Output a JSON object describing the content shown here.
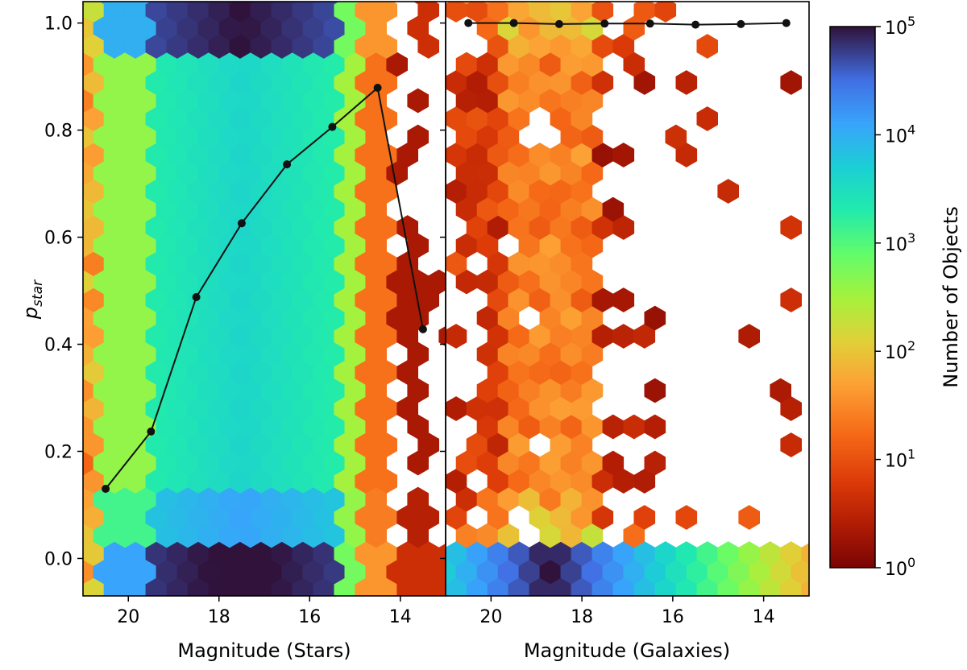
{
  "chart_data": [
    {
      "type": "heatmap",
      "panel": "stars",
      "xlabel": "Magnitude (Stars)",
      "ylabel_base": "p",
      "ylabel_sub": "star",
      "xlim": [
        21.0,
        13.0
      ],
      "ylim": [
        -0.07,
        1.04
      ],
      "x_ticks": [
        20,
        18,
        16,
        14
      ],
      "y_ticks": [
        0.0,
        0.2,
        0.4,
        0.6,
        0.8,
        1.0
      ],
      "density_description": "Dense hexbin: ~1e3-1e4 objects per bin for magnitudes 20.5-15, peaks (~1e5) at p_star=0 and p_star=1, sparse dark-red bins brighter than mag 15",
      "series": [
        {
          "values": [
            [
              20.5,
              0.13
            ],
            [
              19.5,
              0.237
            ],
            [
              18.5,
              0.488
            ],
            [
              17.5,
              0.626
            ],
            [
              16.5,
              0.736
            ],
            [
              15.5,
              0.806
            ],
            [
              14.5,
              0.879
            ],
            [
              13.5,
              0.428
            ]
          ]
        }
      ]
    },
    {
      "type": "heatmap",
      "panel": "galaxies",
      "xlabel": "Magnitude (Galaxies)",
      "xlim": [
        21.0,
        13.0
      ],
      "ylim": [
        -0.07,
        1.04
      ],
      "x_ticks": [
        20,
        18,
        16,
        14
      ],
      "density_description": "Hexbin concentrated at p_star=0 (~1e5 at mag 19-18), sparse red bins (1-30 objects) for magnitudes 21-17 across all p_star",
      "series": [
        {
          "values": [
            [
              20.5,
              1.0
            ],
            [
              19.5,
              1.0
            ],
            [
              18.5,
              0.998
            ],
            [
              17.5,
              0.999
            ],
            [
              16.5,
              0.999
            ],
            [
              15.5,
              0.997
            ],
            [
              14.5,
              0.998
            ],
            [
              13.5,
              1.0
            ]
          ]
        }
      ]
    }
  ],
  "colorbar": {
    "label": "Number of Objects",
    "scale": "log",
    "range": [
      1,
      100000
    ],
    "ticks": [
      {
        "base": "10",
        "exp": "0",
        "value": 1
      },
      {
        "base": "10",
        "exp": "1",
        "value": 10
      },
      {
        "base": "10",
        "exp": "2",
        "value": 100
      },
      {
        "base": "10",
        "exp": "3",
        "value": 1000
      },
      {
        "base": "10",
        "exp": "4",
        "value": 10000
      },
      {
        "base": "10",
        "exp": "5",
        "value": 100000
      }
    ],
    "colormap": "turbo (reversed)"
  },
  "colors": {
    "line": "#111111",
    "marker": "#111111"
  }
}
